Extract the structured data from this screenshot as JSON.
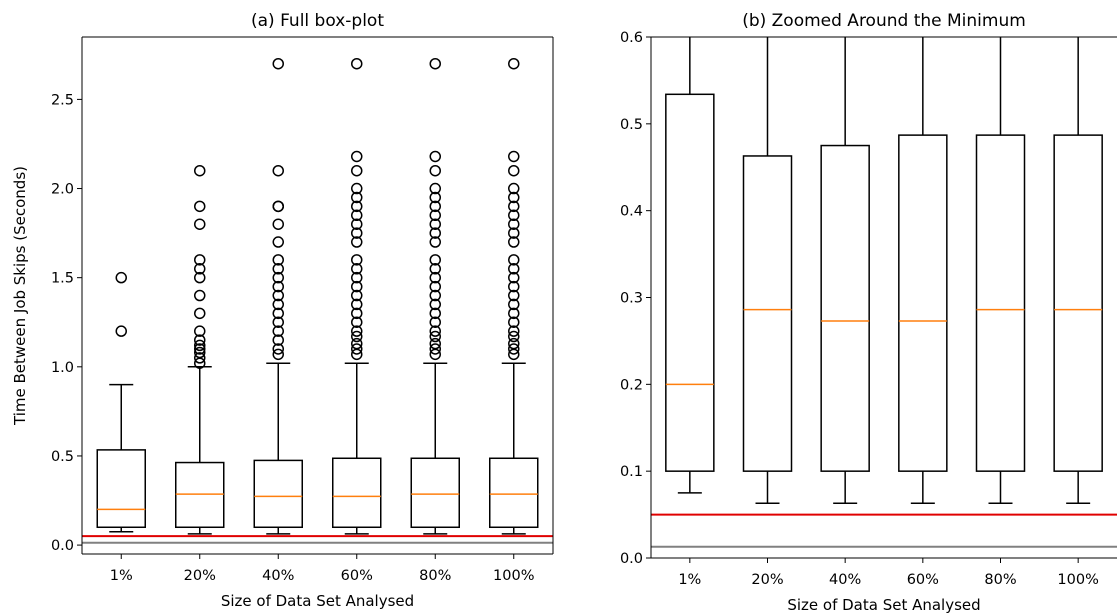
{
  "chart_data": [
    {
      "type": "box",
      "title": "(a) Full box-plot",
      "xlabel": "Size of Data Set Analysed",
      "ylabel": "Time Between Job Skips (Seconds)",
      "ylim": [
        -0.05,
        2.85
      ],
      "yticks": [
        0.0,
        0.5,
        1.0,
        1.5,
        2.0,
        2.5
      ],
      "ytick_labels": [
        "0.0",
        "0.5",
        "1.0",
        "1.5",
        "2.0",
        "2.5"
      ],
      "categories": [
        "1%",
        "20%",
        "40%",
        "60%",
        "80%",
        "100%"
      ],
      "boxes": [
        {
          "whislo": 0.075,
          "q1": 0.1,
          "med": 0.2,
          "q3": 0.534,
          "whishi": 0.9,
          "fliers": [
            1.2,
            1.5
          ]
        },
        {
          "whislo": 0.063,
          "q1": 0.1,
          "med": 0.286,
          "q3": 0.463,
          "whishi": 1.0,
          "fliers": [
            1.02,
            1.05,
            1.08,
            1.1,
            1.12,
            1.15,
            1.2,
            1.3,
            1.4,
            1.5,
            1.55,
            1.6,
            1.8,
            1.9,
            2.1
          ]
        },
        {
          "whislo": 0.063,
          "q1": 0.1,
          "med": 0.273,
          "q3": 0.475,
          "whishi": 1.02,
          "fliers": [
            1.07,
            1.1,
            1.15,
            1.2,
            1.25,
            1.3,
            1.35,
            1.4,
            1.45,
            1.5,
            1.55,
            1.6,
            1.7,
            1.8,
            1.9,
            1.9,
            2.1,
            2.7
          ]
        },
        {
          "whislo": 0.063,
          "q1": 0.1,
          "med": 0.273,
          "q3": 0.487,
          "whishi": 1.02,
          "fliers": [
            1.07,
            1.1,
            1.13,
            1.17,
            1.2,
            1.25,
            1.3,
            1.35,
            1.4,
            1.45,
            1.5,
            1.55,
            1.6,
            1.7,
            1.75,
            1.8,
            1.85,
            1.9,
            1.95,
            2.0,
            2.1,
            2.18,
            2.7
          ]
        },
        {
          "whislo": 0.063,
          "q1": 0.1,
          "med": 0.286,
          "q3": 0.487,
          "whishi": 1.02,
          "fliers": [
            1.07,
            1.1,
            1.13,
            1.17,
            1.2,
            1.25,
            1.3,
            1.35,
            1.4,
            1.45,
            1.5,
            1.55,
            1.6,
            1.7,
            1.75,
            1.8,
            1.85,
            1.9,
            1.95,
            2.0,
            2.1,
            2.18,
            2.7
          ]
        },
        {
          "whislo": 0.063,
          "q1": 0.1,
          "med": 0.286,
          "q3": 0.487,
          "whishi": 1.02,
          "fliers": [
            1.07,
            1.1,
            1.13,
            1.17,
            1.2,
            1.25,
            1.3,
            1.35,
            1.4,
            1.45,
            1.5,
            1.55,
            1.6,
            1.7,
            1.75,
            1.8,
            1.85,
            1.9,
            1.95,
            2.0,
            2.1,
            2.18,
            2.7
          ]
        }
      ],
      "hlines": [
        {
          "y": 0.05,
          "color": "#e00000"
        },
        {
          "y": 0.013,
          "color": "#808080"
        }
      ],
      "colors": {
        "box": "#000000",
        "median": "#ff7f0e",
        "fliers": "#000000"
      }
    },
    {
      "type": "box",
      "title": "(b) Zoomed Around the Minimum",
      "xlabel": "Size of Data Set Analysed",
      "ylabel": "",
      "ylim": [
        0.0,
        0.6
      ],
      "yticks": [
        0.0,
        0.1,
        0.2,
        0.3,
        0.4,
        0.5,
        0.6
      ],
      "ytick_labels": [
        "0.0",
        "0.1",
        "0.2",
        "0.3",
        "0.4",
        "0.5",
        "0.6"
      ],
      "categories": [
        "1%",
        "20%",
        "40%",
        "60%",
        "80%",
        "100%"
      ],
      "boxes": [
        {
          "whislo": 0.075,
          "q1": 0.1,
          "med": 0.2,
          "q3": 0.534,
          "whishi": 0.9
        },
        {
          "whislo": 0.063,
          "q1": 0.1,
          "med": 0.286,
          "q3": 0.463,
          "whishi": 1.0
        },
        {
          "whislo": 0.063,
          "q1": 0.1,
          "med": 0.273,
          "q3": 0.475,
          "whishi": 1.02
        },
        {
          "whislo": 0.063,
          "q1": 0.1,
          "med": 0.273,
          "q3": 0.487,
          "whishi": 1.02
        },
        {
          "whislo": 0.063,
          "q1": 0.1,
          "med": 0.286,
          "q3": 0.487,
          "whishi": 1.02
        },
        {
          "whislo": 0.063,
          "q1": 0.1,
          "med": 0.286,
          "q3": 0.487,
          "whishi": 1.02
        }
      ],
      "hlines": [
        {
          "y": 0.05,
          "color": "#e00000"
        },
        {
          "y": 0.013,
          "color": "#808080"
        }
      ],
      "colors": {
        "box": "#000000",
        "median": "#ff7f0e",
        "fliers": "#000000"
      }
    }
  ]
}
